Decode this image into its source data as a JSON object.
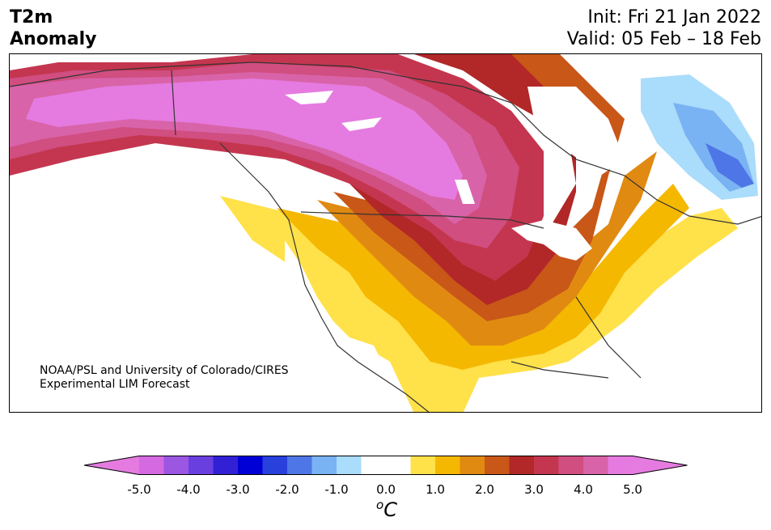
{
  "header": {
    "title_line1": "T2m",
    "title_line2": "Anomaly",
    "init": "Init: Fri 21 Jan 2022",
    "valid": "Valid: 05 Feb – 18 Feb"
  },
  "credit": {
    "line1": "NOAA/PSL and University of Colorado/CIRES",
    "line2": "Experimental LIM Forecast"
  },
  "colorbar": {
    "unit_base": "C",
    "unit_sup": "o",
    "ticks": [
      "-5.0",
      "-4.0",
      "-3.0",
      "-2.0",
      "-1.0",
      "0.0",
      "1.0",
      "2.0",
      "3.0",
      "4.0",
      "5.0"
    ],
    "range": [
      -5.0,
      5.0
    ],
    "under_color": "#e57be0",
    "over_color": "#e57be0",
    "colors": [
      "#d469e1",
      "#9b56e2",
      "#6a3fe0",
      "#3221d4",
      "#0000d6",
      "#2840dc",
      "#4f76e6",
      "#7ab3f3",
      "#aadcfb",
      "#ffffff",
      "#ffffff",
      "#ffe14a",
      "#f5b800",
      "#e08a12",
      "#c85718",
      "#b22727",
      "#c4364f",
      "#d04e80",
      "#d963a8",
      "#e57be0"
    ]
  },
  "map": {
    "region": "North America",
    "palette": {
      "land": "#ffffff",
      "border": "#333333",
      "a0": "#ffe14a",
      "a1": "#f5b800",
      "a2": "#e08a12",
      "a3": "#c85718",
      "a4": "#b22727",
      "a5": "#c4364f",
      "a6": "#d04e80",
      "a7": "#d963a8",
      "a8": "#e57be0",
      "c1": "#aadcfb",
      "c2": "#7ab3f3",
      "c3": "#4f76e6"
    }
  }
}
